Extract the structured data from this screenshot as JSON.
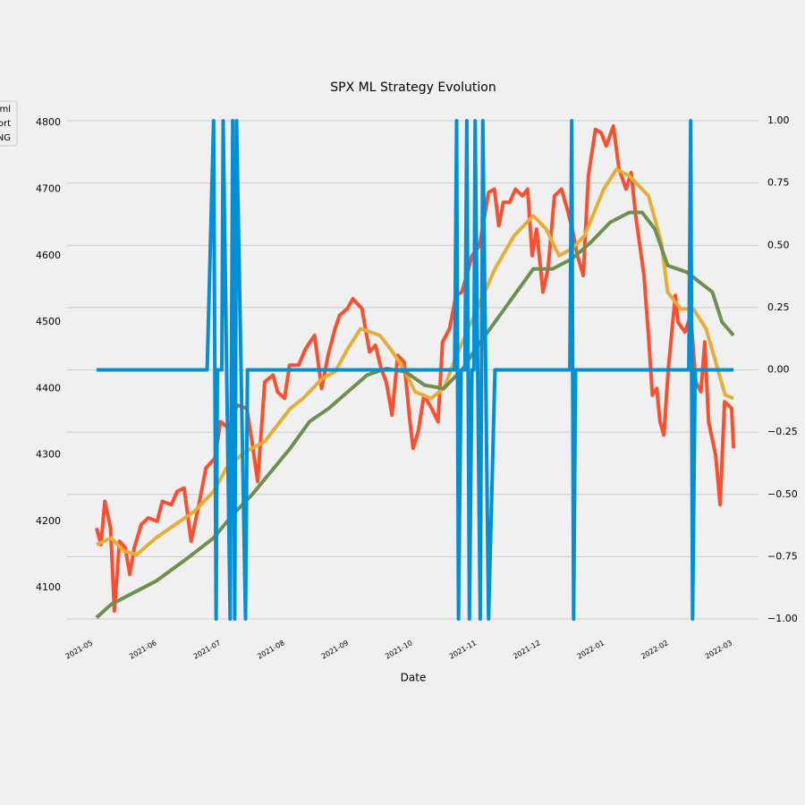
{
  "chart_data": {
    "type": "line",
    "title": "SPX ML Strategy Evolution",
    "xlabel": "Date",
    "xlim": [
      -0.39,
      10.42
    ],
    "xticks": [
      {
        "value": 0,
        "label": "2021-05"
      },
      {
        "value": 1,
        "label": "2021-06"
      },
      {
        "value": 2,
        "label": "2021-07"
      },
      {
        "value": 3,
        "label": "2021-08"
      },
      {
        "value": 4,
        "label": "2021-09"
      },
      {
        "value": 5,
        "label": "2021-10"
      },
      {
        "value": 6,
        "label": "2021-11"
      },
      {
        "value": 7,
        "label": "2021-12"
      },
      {
        "value": 8,
        "label": "2022-01"
      },
      {
        "value": 9,
        "label": "2022-02"
      },
      {
        "value": 10,
        "label": "2022-03"
      }
    ],
    "ylim": [
      4053,
      4803
    ],
    "yticks": [
      4100,
      4200,
      4300,
      4400,
      4500,
      4600,
      4700,
      4800
    ],
    "y2lim": [
      -1,
      1
    ],
    "y2ticks": [
      {
        "value": 1,
        "label": "1.00"
      },
      {
        "value": 0.75,
        "label": "0.75"
      },
      {
        "value": 0.5,
        "label": "0.50"
      },
      {
        "value": 0.25,
        "label": "0.25"
      },
      {
        "value": 0,
        "label": "0.00"
      },
      {
        "value": -0.25,
        "label": "−0.25"
      },
      {
        "value": -0.5,
        "label": "−0.50"
      },
      {
        "value": -0.75,
        "label": "−0.75"
      },
      {
        "value": -1,
        "label": "−1.00"
      }
    ],
    "grid": true,
    "legend": "upper-left",
    "series": [
      {
        "name": "ml",
        "color": "#fc4f30",
        "x": [
          0.07,
          0.14,
          0.2,
          0.29,
          0.35,
          0.43,
          0.52,
          0.59,
          0.66,
          0.77,
          0.88,
          1.02,
          1.1,
          1.24,
          1.33,
          1.44,
          1.55,
          1.66,
          1.78,
          1.92,
          2.01,
          2.14,
          2.27,
          2.42,
          2.5,
          2.59,
          2.7,
          2.83,
          2.9,
          3.01,
          3.09,
          3.23,
          3.34,
          3.48,
          3.59,
          3.69,
          3.8,
          3.87,
          3.99,
          4.08,
          4.22,
          4.34,
          4.43,
          4.52,
          4.6,
          4.69,
          4.78,
          4.88,
          4.97,
          5.02,
          5.1,
          5.19,
          5.31,
          5.41,
          5.48,
          5.59,
          5.69,
          5.78,
          5.86,
          5.94,
          6.06,
          6.2,
          6.29,
          6.36,
          6.43,
          6.53,
          6.62,
          6.73,
          6.81,
          6.88,
          6.95,
          7.05,
          7.13,
          7.23,
          7.34,
          7.43,
          7.51,
          7.59,
          7.68,
          7.76,
          7.87,
          7.96,
          8.04,
          8.15,
          8.24,
          8.35,
          8.43,
          8.5,
          8.63,
          8.7,
          8.76,
          8.83,
          8.88,
          8.94,
          9.01,
          9.12,
          9.16,
          9.27,
          9.36,
          9.44,
          9.52,
          9.58,
          9.64,
          9.75,
          9.82,
          9.89,
          10.0,
          10.03
        ],
        "values": [
          4190,
          4165,
          4230,
          4190,
          4065,
          4170,
          4160,
          4120,
          4160,
          4195,
          4205,
          4200,
          4230,
          4225,
          4245,
          4250,
          4170,
          4220,
          4280,
          4295,
          4350,
          4340,
          4375,
          4370,
          4320,
          4260,
          4410,
          4420,
          4395,
          4385,
          4435,
          4435,
          4460,
          4480,
          4400,
          4450,
          4490,
          4510,
          4520,
          4535,
          4520,
          4455,
          4465,
          4430,
          4410,
          4360,
          4450,
          4440,
          4350,
          4310,
          4335,
          4390,
          4370,
          4350,
          4470,
          4490,
          4540,
          4545,
          4570,
          4600,
          4615,
          4695,
          4700,
          4645,
          4680,
          4680,
          4700,
          4690,
          4700,
          4600,
          4640,
          4545,
          4580,
          4690,
          4700,
          4670,
          4640,
          4600,
          4570,
          4720,
          4790,
          4785,
          4765,
          4795,
          4730,
          4700,
          4725,
          4660,
          4570,
          4480,
          4390,
          4400,
          4350,
          4330,
          4430,
          4540,
          4500,
          4485,
          4510,
          4410,
          4395,
          4470,
          4350,
          4300,
          4225,
          4380,
          4370,
          4310
        ]
      },
      {
        "name": "ort",
        "color": "#e5ae38",
        "x": [
          0.07,
          0.3,
          0.5,
          0.7,
          1.0,
          1.3,
          1.6,
          1.9,
          2.1,
          2.4,
          2.7,
          2.9,
          3.1,
          3.3,
          3.6,
          3.8,
          4.0,
          4.2,
          4.5,
          4.7,
          4.9,
          5.05,
          5.3,
          5.5,
          5.7,
          6.0,
          6.3,
          6.6,
          6.9,
          7.1,
          7.3,
          7.5,
          7.7,
          8.0,
          8.2,
          8.4,
          8.7,
          8.9,
          9.0,
          9.2,
          9.4,
          9.6,
          9.75,
          9.9,
          10.03
        ],
        "values": [
          4165,
          4175,
          4155,
          4150,
          4175,
          4195,
          4215,
          4245,
          4280,
          4305,
          4320,
          4345,
          4370,
          4385,
          4415,
          4425,
          4460,
          4490,
          4480,
          4455,
          4425,
          4395,
          4385,
          4400,
          4450,
          4515,
          4580,
          4630,
          4660,
          4640,
          4600,
          4610,
          4630,
          4700,
          4730,
          4720,
          4690,
          4620,
          4545,
          4520,
          4520,
          4490,
          4440,
          4390,
          4385
        ]
      },
      {
        "name": "NG",
        "color": "#6d904f",
        "x": [
          0.07,
          0.3,
          0.7,
          1.0,
          1.5,
          1.9,
          2.2,
          2.5,
          2.8,
          3.1,
          3.4,
          3.7,
          4.0,
          4.3,
          4.6,
          4.9,
          5.2,
          5.5,
          5.8,
          6.0,
          6.3,
          6.6,
          6.9,
          7.2,
          7.5,
          7.8,
          8.1,
          8.4,
          8.6,
          8.8,
          9.0,
          9.3,
          9.5,
          9.7,
          9.85,
          10.03
        ],
        "values": [
          4055,
          4075,
          4095,
          4110,
          4145,
          4175,
          4210,
          4240,
          4275,
          4310,
          4350,
          4370,
          4395,
          4420,
          4430,
          4425,
          4405,
          4400,
          4430,
          4460,
          4500,
          4540,
          4580,
          4580,
          4595,
          4620,
          4650,
          4665,
          4665,
          4640,
          4585,
          4575,
          4560,
          4545,
          4500,
          4480
        ]
      },
      {
        "color": "#008fd5",
        "axis": "y2",
        "x": [
          0.07,
          1.8,
          1.9,
          1.94,
          1.96,
          2.03,
          2.05,
          2.16,
          2.2,
          2.23,
          2.26,
          2.4,
          2.43,
          5.67,
          5.7,
          5.73,
          5.77,
          5.83,
          5.86,
          5.9,
          5.94,
          5.97,
          5.99,
          6.07,
          6.11,
          6.2,
          6.3,
          7.47,
          7.5,
          7.53,
          7.56,
          9.33,
          9.36,
          9.39,
          9.43,
          10.03
        ],
        "values": [
          0,
          0,
          1,
          -1,
          0,
          0,
          1,
          -1,
          1,
          -1,
          1,
          -1,
          0,
          0,
          1,
          -1,
          0,
          0,
          1,
          -1,
          0,
          0,
          1,
          -1,
          1,
          -1,
          0,
          0,
          1,
          -1,
          0,
          0,
          1,
          -1,
          0,
          0
        ]
      }
    ]
  }
}
